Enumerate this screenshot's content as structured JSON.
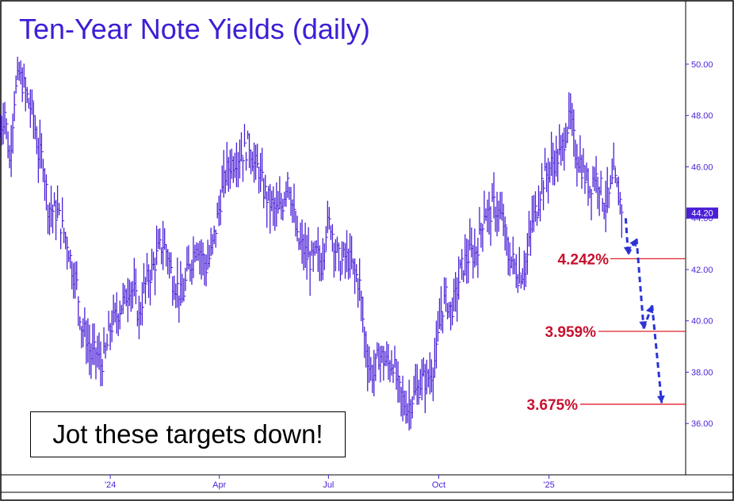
{
  "chart_data": {
    "type": "line",
    "title": "Ten-Year Note Yields (daily)",
    "style": "ohlc-bars",
    "colors": {
      "price": "#4a1fd6",
      "target": "#e0202a",
      "target_label": "#c8102e",
      "path": "#2a33d6",
      "title": "#3b1fd6"
    },
    "ylim": [
      34.0,
      52.5
    ],
    "y_ticks": [
      "36.00",
      "38.00",
      "40.00",
      "42.00",
      "44.00",
      "46.00",
      "48.00",
      "50.00"
    ],
    "y_tick_values": [
      36,
      38,
      40,
      42,
      44,
      46,
      48,
      50
    ],
    "x_ticks": [
      "'24",
      "Apr",
      "Jul",
      "Oct",
      "'25"
    ],
    "x_tick_dates": [
      "2024-01-01",
      "2024-04-01",
      "2024-07-01",
      "2024-10-01",
      "2025-01-01"
    ],
    "xlim": [
      "2023-10-01",
      "2025-04-25"
    ],
    "last_price_label": "44.20",
    "last_price": 44.2,
    "series": [
      {
        "x": [
          "2023-10-01",
          "2023-10-05",
          "2023-10-09",
          "2023-10-13",
          "2023-10-17",
          "2023-10-21",
          "2023-10-25",
          "2023-10-29",
          "2023-11-02",
          "2023-11-06",
          "2023-11-10",
          "2023-11-14",
          "2023-11-18",
          "2023-11-22",
          "2023-11-26",
          "2023-11-30",
          "2023-12-04",
          "2023-12-08",
          "2023-12-12",
          "2023-12-16",
          "2023-12-20",
          "2023-12-24",
          "2023-12-28",
          "2024-01-01",
          "2024-01-05",
          "2024-01-09",
          "2024-01-13",
          "2024-01-17",
          "2024-01-21",
          "2024-01-25",
          "2024-01-29",
          "2024-02-02",
          "2024-02-06",
          "2024-02-10",
          "2024-02-14",
          "2024-02-18",
          "2024-02-22",
          "2024-02-26",
          "2024-03-01",
          "2024-03-05",
          "2024-03-09",
          "2024-03-13",
          "2024-03-17",
          "2024-03-21",
          "2024-03-25",
          "2024-03-29",
          "2024-04-02",
          "2024-04-06",
          "2024-04-10",
          "2024-04-14",
          "2024-04-18",
          "2024-04-22",
          "2024-04-26",
          "2024-04-30",
          "2024-05-04",
          "2024-05-08",
          "2024-05-12",
          "2024-05-16",
          "2024-05-20",
          "2024-05-24",
          "2024-05-28",
          "2024-06-01",
          "2024-06-05",
          "2024-06-09",
          "2024-06-13",
          "2024-06-17",
          "2024-06-21",
          "2024-06-25",
          "2024-06-29",
          "2024-07-03",
          "2024-07-07",
          "2024-07-11",
          "2024-07-15",
          "2024-07-19",
          "2024-07-23",
          "2024-07-27",
          "2024-07-31",
          "2024-08-04",
          "2024-08-08",
          "2024-08-12",
          "2024-08-16",
          "2024-08-20",
          "2024-08-24",
          "2024-08-28",
          "2024-09-01",
          "2024-09-05",
          "2024-09-09",
          "2024-09-13",
          "2024-09-17",
          "2024-09-21",
          "2024-09-25",
          "2024-09-29",
          "2024-10-03",
          "2024-10-07",
          "2024-10-11",
          "2024-10-15",
          "2024-10-19",
          "2024-10-23",
          "2024-10-27",
          "2024-10-31",
          "2024-11-04",
          "2024-11-08",
          "2024-11-12",
          "2024-11-16",
          "2024-11-20",
          "2024-11-24",
          "2024-11-28",
          "2024-12-02",
          "2024-12-06",
          "2024-12-10",
          "2024-12-14",
          "2024-12-18",
          "2024-12-22",
          "2024-12-26",
          "2024-12-30",
          "2025-01-03",
          "2025-01-07",
          "2025-01-11",
          "2025-01-15",
          "2025-01-19",
          "2025-01-23",
          "2025-01-27",
          "2025-01-31",
          "2025-02-04",
          "2025-02-08",
          "2025-02-12",
          "2025-02-16",
          "2025-02-20",
          "2025-02-24",
          "2025-02-28",
          "2025-03-04"
        ],
        "values": [
          47.4,
          48.2,
          46.2,
          48.7,
          49.6,
          49.1,
          48.5,
          48.0,
          46.5,
          46.3,
          44.5,
          44.3,
          44.2,
          43.6,
          43.1,
          42.1,
          41.4,
          39.8,
          39.4,
          38.6,
          38.8,
          38.3,
          38.7,
          39.7,
          40.1,
          40.5,
          40.8,
          41.4,
          41.1,
          40.1,
          41.2,
          41.7,
          42.1,
          42.7,
          43.0,
          42.6,
          41.6,
          41.3,
          40.8,
          41.8,
          42.4,
          43.1,
          42.6,
          42.1,
          42.6,
          43.6,
          44.7,
          45.7,
          46.1,
          46.3,
          46.5,
          46.6,
          46.9,
          46.1,
          45.9,
          45.1,
          44.7,
          44.4,
          44.2,
          44.6,
          45.7,
          44.5,
          43.1,
          42.9,
          42.5,
          42.3,
          42.6,
          42.2,
          43.6,
          43.8,
          42.8,
          42.2,
          42.5,
          42.3,
          41.9,
          41.4,
          39.4,
          38.2,
          37.9,
          38.7,
          38.5,
          38.3,
          38.4,
          37.4,
          36.9,
          36.6,
          37.0,
          37.3,
          37.7,
          37.7,
          38.0,
          38.7,
          40.4,
          40.9,
          40.4,
          40.9,
          41.9,
          42.3,
          42.6,
          42.6,
          43.2,
          44.3,
          44.1,
          44.5,
          44.2,
          43.8,
          42.5,
          42.3,
          41.8,
          41.9,
          42.5,
          43.9,
          44.4,
          45.4,
          45.7,
          46.1,
          46.3,
          46.5,
          47.4,
          47.9,
          46.6,
          46.2,
          45.6,
          45.2,
          45.7,
          45.4,
          44.6,
          44.8,
          45.6,
          44.9,
          44.2
        ]
      }
    ],
    "targets": [
      {
        "label": "4.242%",
        "value": 42.42
      },
      {
        "label": "3.959%",
        "value": 39.59
      },
      {
        "label": "3.675%",
        "value": 36.75
      }
    ],
    "projected_path": [
      {
        "x": "2025-03-06",
        "y": 44.0
      },
      {
        "x": "2025-03-08",
        "y": 42.6
      },
      {
        "x": "2025-03-15",
        "y": 43.2
      },
      {
        "x": "2025-03-21",
        "y": 39.7
      },
      {
        "x": "2025-03-28",
        "y": 40.6
      },
      {
        "x": "2025-04-05",
        "y": 36.8
      }
    ],
    "annotation": "Jot these targets down!"
  }
}
